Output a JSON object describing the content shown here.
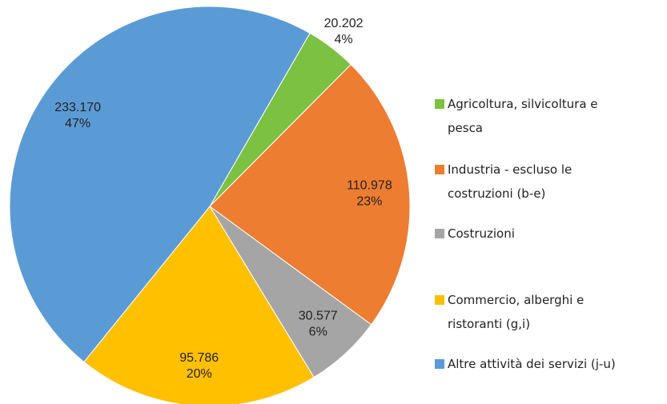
{
  "chart_data": {
    "type": "pie",
    "categories": [
      "Agricoltura, silvicoltura e pesca",
      "Industria - escluso le costruzioni (b-e)",
      "Costruzioni",
      "Commercio, alberghi e ristoranti (g,i)",
      "Altre attività dei servizi (j-u)"
    ],
    "values": [
      20202,
      110978,
      30577,
      95786,
      233170
    ],
    "value_labels": [
      "20.202",
      "110.978",
      "30.577",
      "95.786",
      "233.170"
    ],
    "percentages": [
      4,
      23,
      6,
      20,
      47
    ],
    "percentage_labels": [
      "4%",
      "23%",
      "6%",
      "20%",
      "47%"
    ],
    "colors": [
      "#7cc142",
      "#ed7d31",
      "#a5a5a5",
      "#ffc000",
      "#5b9bd5"
    ],
    "legend": "right"
  }
}
